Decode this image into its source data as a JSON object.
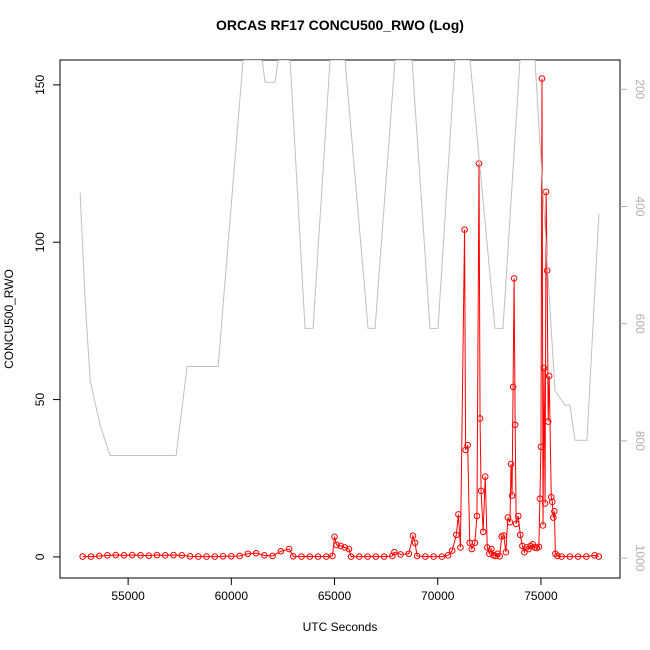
{
  "chart_data": {
    "type": "line",
    "title": "ORCAS RF17 CONCU500_RWO (Log)",
    "x_label": "UTC Seconds",
    "y_label": "CONCU500_RWO",
    "xlim": [
      51700,
      78830
    ],
    "xticks": [
      55000,
      60000,
      65000,
      70000,
      75000
    ],
    "ylim": [
      -6.7,
      157.9
    ],
    "yticks": [
      0,
      50,
      100,
      150
    ],
    "y2lim": [
      1034,
      150
    ],
    "y2ticks": [
      200,
      400,
      600,
      800,
      1000
    ],
    "series": [
      {
        "color": "#ff0000",
        "markers": true,
        "x": [
          52800,
          53200,
          53600,
          54000,
          54400,
          54800,
          55200,
          55600,
          56000,
          56400,
          56800,
          57200,
          57600,
          58000,
          58400,
          58800,
          59200,
          59600,
          60000,
          60400,
          60800,
          61200,
          61600,
          62000,
          62400,
          62800,
          63000,
          63400,
          63800,
          64200,
          64600,
          64900,
          65000,
          65100,
          65300,
          65500,
          65700,
          65800,
          66200,
          66600,
          67000,
          67400,
          67800,
          67900,
          68200,
          68600,
          68800,
          68900,
          69000,
          69400,
          69800,
          70200,
          70500,
          70700,
          70900,
          71000,
          71100,
          71300,
          71350,
          71450,
          71550,
          71650,
          71800,
          71900,
          72000,
          72050,
          72100,
          72200,
          72300,
          72400,
          72500,
          72600,
          72700,
          72800,
          72900,
          73000,
          73100,
          73200,
          73300,
          73400,
          73500,
          73550,
          73600,
          73650,
          73700,
          73750,
          73800,
          73900,
          74000,
          74100,
          74200,
          74300,
          74400,
          74500,
          74600,
          74700,
          74800,
          74900,
          74950,
          75000,
          75050,
          75100,
          75150,
          75200,
          75250,
          75300,
          75350,
          75400,
          75500,
          75550,
          75600,
          75650,
          75700,
          75800,
          76000,
          76400,
          76800,
          77200,
          77600,
          77800
        ],
        "values": [
          0.1,
          0.1,
          0.3,
          0.5,
          0.6,
          0.5,
          0.6,
          0.5,
          0.4,
          0.6,
          0.5,
          0.6,
          0.5,
          0.2,
          0.1,
          0.1,
          0.1,
          0.2,
          0.2,
          0.3,
          1.0,
          1.2,
          0.5,
          0.3,
          1.8,
          2.5,
          0.2,
          0.1,
          0.1,
          0.1,
          0.1,
          0.3,
          6.4,
          3.8,
          3.5,
          3,
          2.5,
          0.1,
          0.1,
          0.1,
          0.1,
          0.1,
          0.3,
          1.5,
          0.8,
          1,
          6.7,
          4.5,
          0.3,
          0.1,
          0.1,
          0.1,
          0.5,
          2,
          7,
          13.5,
          3,
          104,
          34,
          35.5,
          4.5,
          2.5,
          4.5,
          13,
          125,
          44,
          21,
          8,
          25.5,
          3,
          1,
          2.5,
          0.5,
          0.3,
          1,
          0.2,
          6.5,
          6.8,
          1.5,
          12.5,
          11,
          29.5,
          19.5,
          54,
          88.5,
          42,
          10.5,
          13,
          7,
          3.5,
          1.5,
          3,
          2.5,
          3.5,
          4,
          3,
          2.8,
          3.2,
          18.5,
          35,
          152,
          10,
          60,
          17,
          116,
          91,
          43,
          57.5,
          19,
          17.5,
          12.5,
          14.5,
          1,
          0.3,
          0.1,
          0.1,
          0.1,
          0.1,
          0.5,
          0.1
        ]
      },
      {
        "color": "#c0c0c0",
        "axis": "y2",
        "markers": false,
        "x": [
          52675,
          52918,
          53160,
          53644,
          54128,
          57325,
          57857,
          59359,
          60569,
          61490,
          61635,
          62119,
          62265,
          62846,
          63572,
          63960,
          64783,
          65509,
          66623,
          66962,
          67931,
          68754,
          69626,
          70013,
          70836,
          71563,
          72773,
          73161,
          73984,
          74710,
          75679,
          76164,
          76406,
          76648,
          77229,
          77713,
          77810
        ],
        "values": [
          376,
          560,
          697,
          773,
          825,
          825,
          673,
          673,
          150,
          150,
          188,
          188,
          150,
          150,
          608,
          608,
          150,
          150,
          608,
          608,
          150,
          150,
          608,
          608,
          150,
          150,
          608,
          608,
          150,
          150,
          714,
          739,
          739,
          799,
          799,
          475,
          412
        ]
      }
    ]
  }
}
